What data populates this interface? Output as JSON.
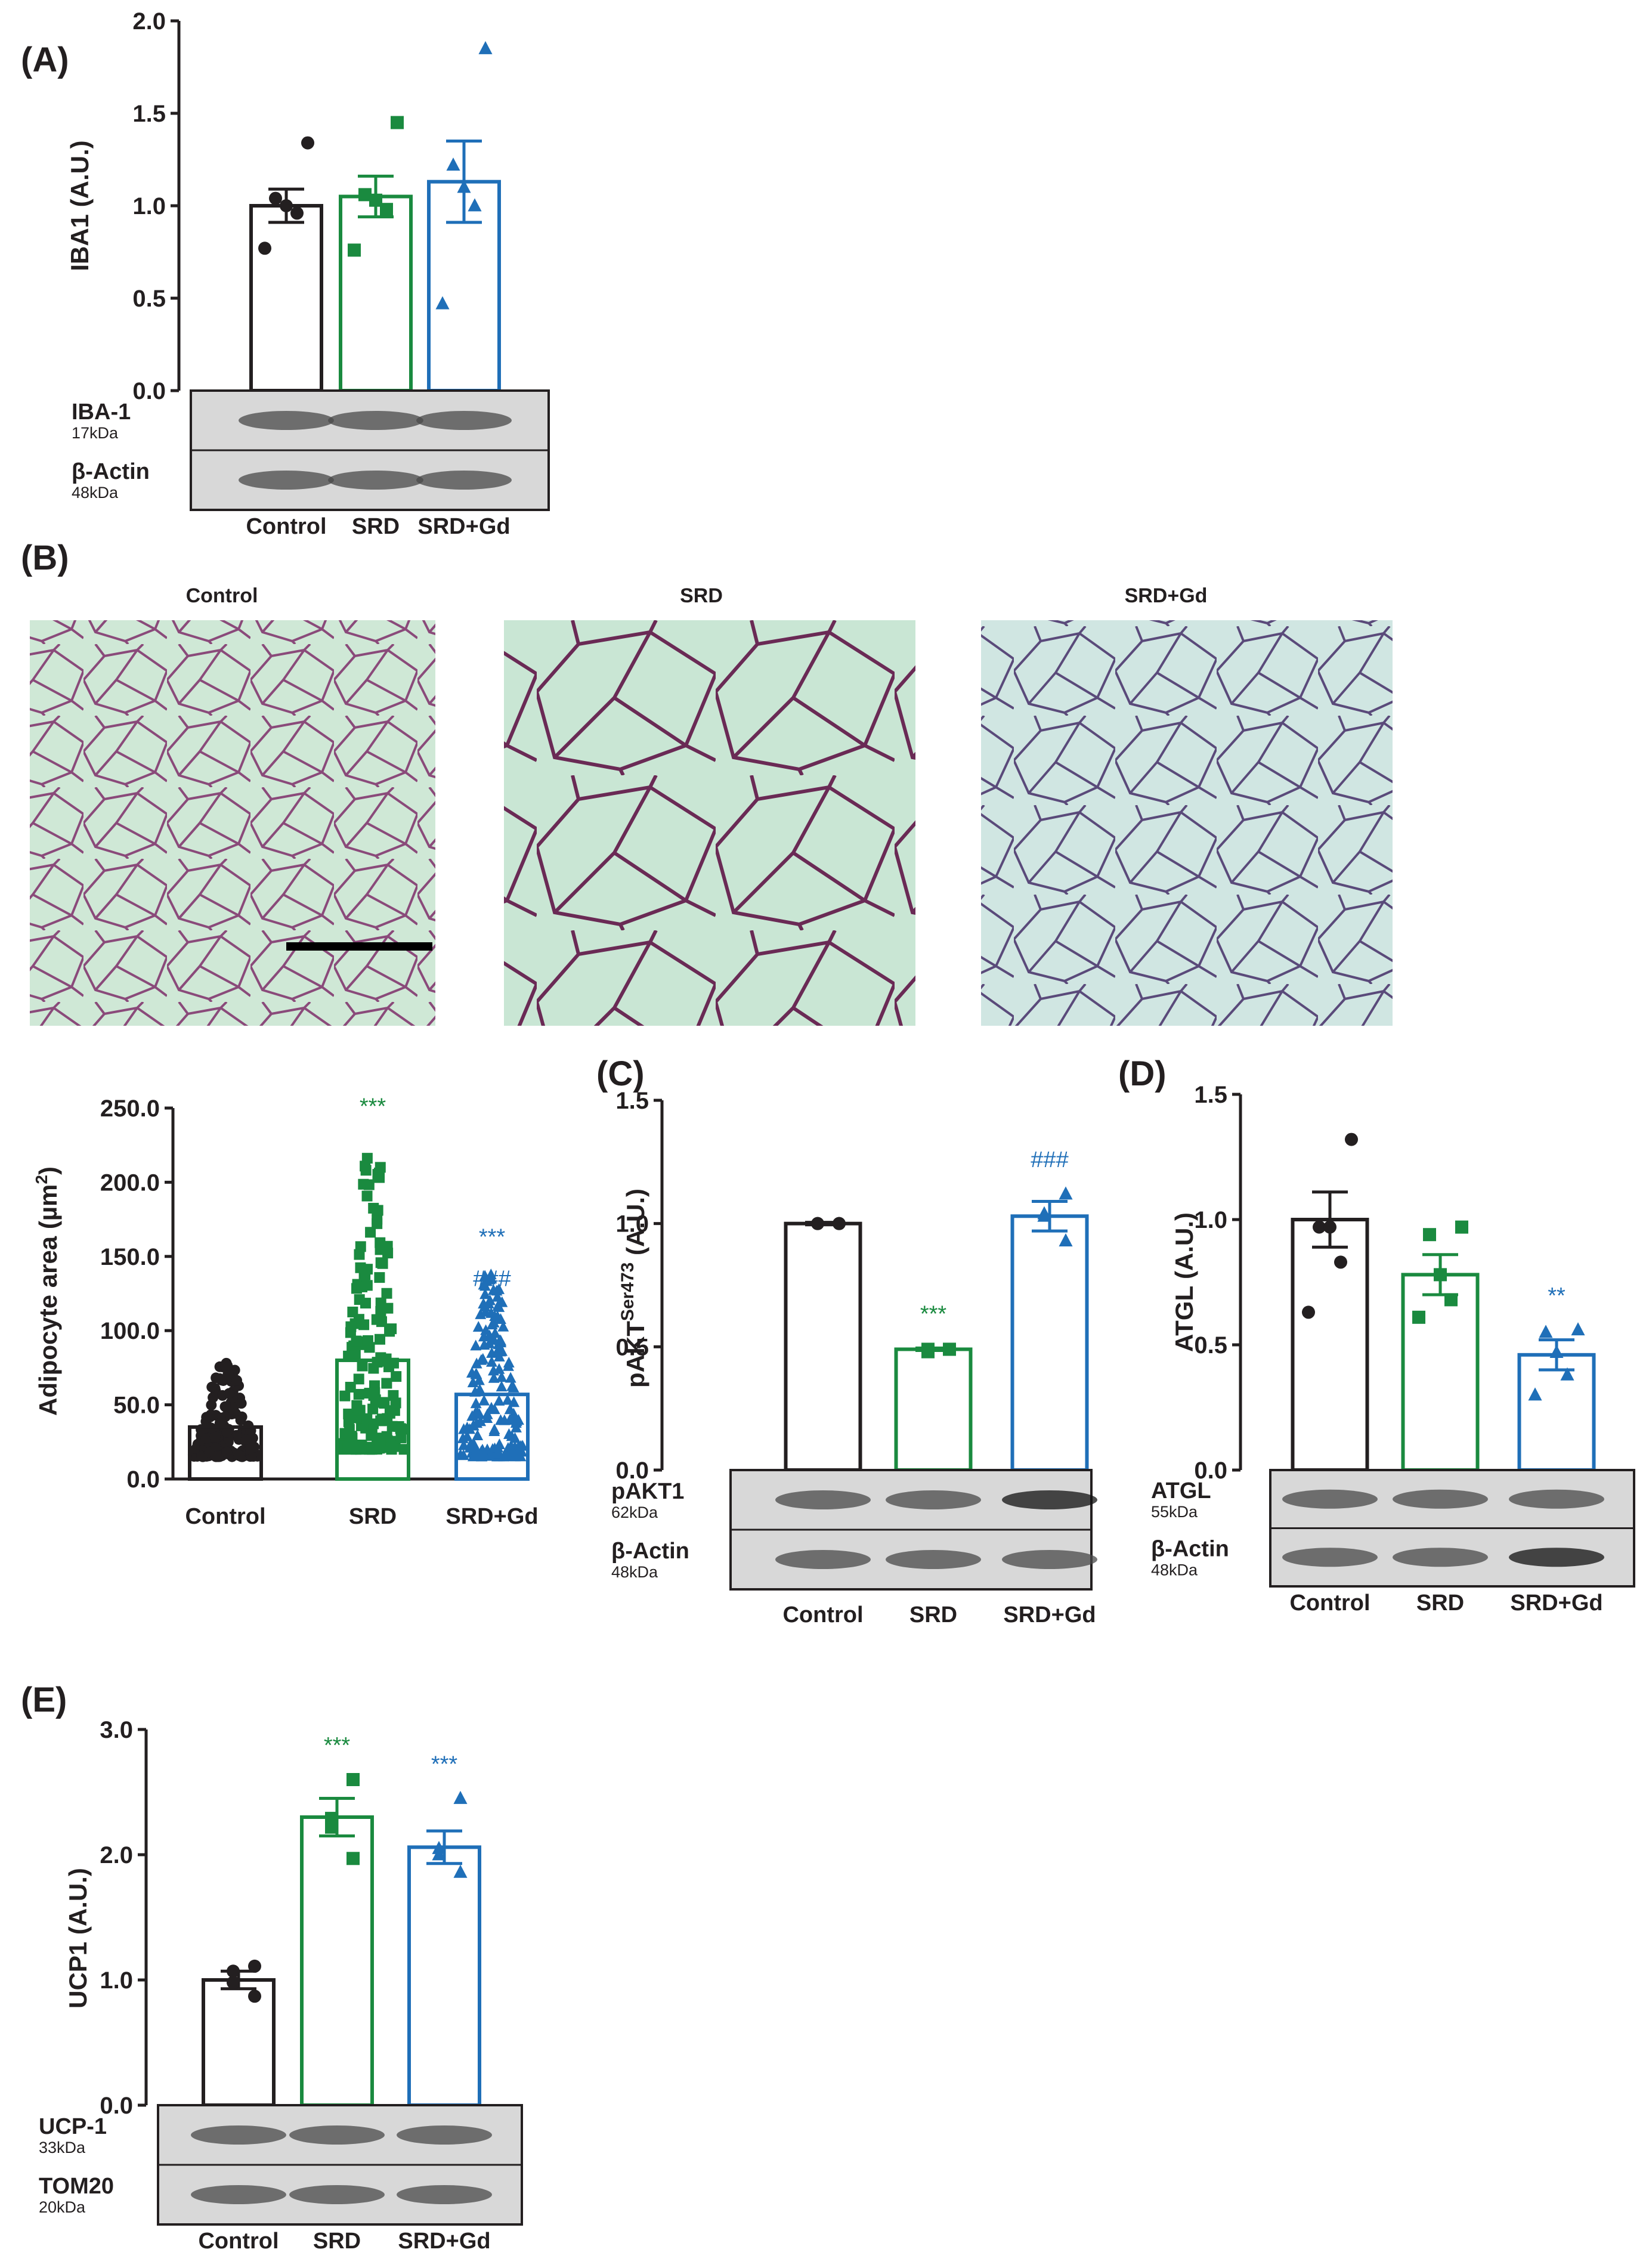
{
  "colors": {
    "control": "#231f20",
    "srd": "#1a8a3f",
    "srdgd": "#1f6fb8"
  },
  "panels": {
    "A": {
      "label": "(A)"
    },
    "B": {
      "label": "(B)",
      "micrographs": [
        "Control",
        "SRD",
        "SRD+Gd"
      ]
    },
    "C": {
      "label": "(C)"
    },
    "D": {
      "label": "(D)"
    },
    "E": {
      "label": "(E)"
    }
  },
  "chart_data": [
    {
      "id": "A",
      "type": "bar",
      "categories": [
        "Control",
        "SRD",
        "SRD+Gd"
      ],
      "values": [
        1.0,
        1.05,
        1.13
      ],
      "sem": [
        0.09,
        0.11,
        0.22
      ],
      "points": [
        [
          1.34,
          1.04,
          1.0,
          0.96,
          0.77
        ],
        [
          1.45,
          1.06,
          1.03,
          0.98,
          0.76
        ],
        [
          1.85,
          1.22,
          1.1,
          1.0,
          0.47
        ]
      ],
      "ylabel": "IBA1 (A.U.)",
      "ylim": [
        0,
        2.0
      ],
      "yticks": [
        "0.0",
        "0.5",
        "1.0",
        "1.5",
        "2.0"
      ],
      "annotations": [],
      "blots": [
        {
          "name": "IBA-1",
          "kda": "17kDa"
        },
        {
          "name": "β-Actin",
          "kda": "48kDa"
        }
      ]
    },
    {
      "id": "B",
      "type": "bar",
      "categories": [
        "Control",
        "SRD",
        "SRD+Gd"
      ],
      "values": [
        35,
        80,
        57
      ],
      "range": [
        [
          15,
          82
        ],
        [
          20,
          220
        ],
        [
          15,
          140
        ]
      ],
      "ylabel": "Adipocyte area (µm²)",
      "ylim": [
        0,
        250
      ],
      "yticks": [
        "0.0",
        "50.0",
        "100.0",
        "150.0",
        "200.0",
        "250.0"
      ],
      "annotations": [
        [
          "***"
        ],
        [
          "***",
          "###"
        ]
      ]
    },
    {
      "id": "C",
      "type": "bar",
      "categories": [
        "Control",
        "SRD",
        "SRD+Gd"
      ],
      "values": [
        1.0,
        0.49,
        1.03
      ],
      "sem": [
        0.005,
        0.005,
        0.06
      ],
      "points": [
        [
          1.0,
          1.0,
          1.0,
          1.0
        ],
        [
          0.49,
          0.49,
          0.48,
          0.49
        ],
        [
          1.12,
          1.04,
          1.03,
          0.93
        ]
      ],
      "ylabel": "pAKTSer473 (A.U.)",
      "ylim": [
        0,
        1.5
      ],
      "yticks": [
        "0.0",
        "0.5",
        "1.0",
        "1.5"
      ],
      "annotations": [
        [
          "***"
        ],
        [
          "###"
        ]
      ],
      "blots": [
        {
          "name": "pAKT1",
          "kda": "62kDa"
        },
        {
          "name": "β-Actin",
          "kda": "48kDa"
        }
      ]
    },
    {
      "id": "D",
      "type": "bar",
      "categories": [
        "Control",
        "SRD",
        "SRD+Gd"
      ],
      "values": [
        1.0,
        0.78,
        0.46
      ],
      "sem": [
        0.11,
        0.08,
        0.06
      ],
      "points": [
        [
          1.32,
          0.97,
          0.97,
          0.83,
          0.63
        ],
        [
          0.97,
          0.94,
          0.78,
          0.68,
          0.61
        ],
        [
          0.56,
          0.55,
          0.47,
          0.38,
          0.3
        ]
      ],
      "ylabel": "ATGL (A.U.)",
      "ylim": [
        0,
        1.5
      ],
      "yticks": [
        "0.0",
        "0.5",
        "1.0",
        "1.5"
      ],
      "annotations": [
        [
          "**"
        ]
      ],
      "blots": [
        {
          "name": "ATGL",
          "kda": "55kDa"
        },
        {
          "name": "β-Actin",
          "kda": "48kDa"
        }
      ]
    },
    {
      "id": "E",
      "type": "bar",
      "categories": [
        "Control",
        "SRD",
        "SRD+Gd"
      ],
      "values": [
        1.0,
        2.3,
        2.06
      ],
      "sem": [
        0.07,
        0.15,
        0.13
      ],
      "points": [
        [
          1.11,
          1.07,
          0.98,
          0.87
        ],
        [
          2.6,
          2.29,
          2.22,
          1.97
        ],
        [
          2.45,
          2.05,
          2.0,
          1.86
        ]
      ],
      "ylabel": "UCP1 (A.U.)",
      "ylim": [
        0,
        3.0
      ],
      "yticks": [
        "0.0",
        "1.0",
        "2.0",
        "3.0"
      ],
      "annotations": [
        [
          "***"
        ],
        [
          "***"
        ]
      ],
      "blots": [
        {
          "name": "UCP-1",
          "kda": "33kDa"
        },
        {
          "name": "TOM20",
          "kda": "20kDa"
        }
      ]
    }
  ]
}
